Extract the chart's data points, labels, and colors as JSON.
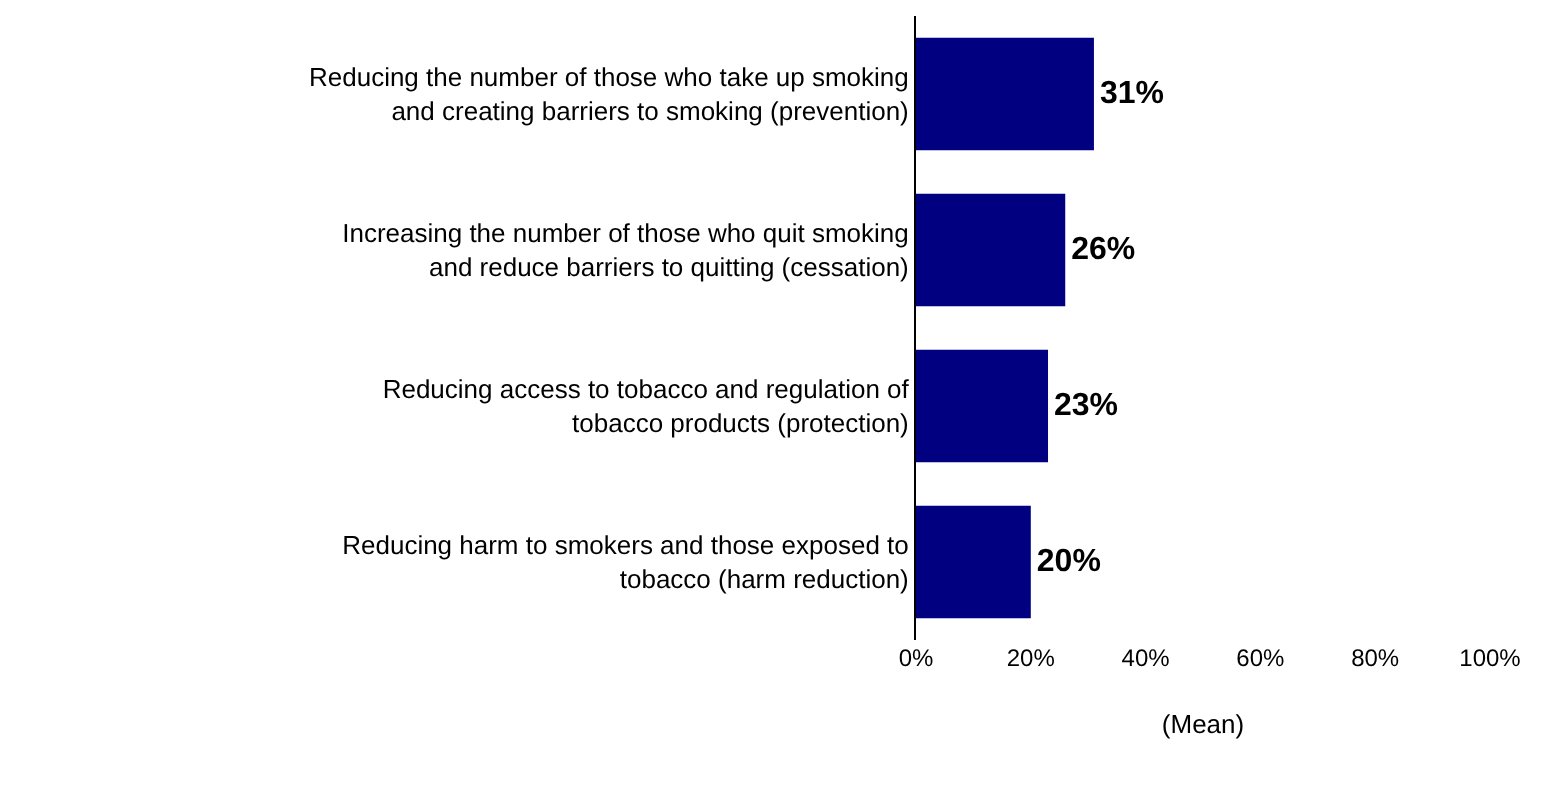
{
  "chart_data": {
    "type": "bar",
    "orientation": "horizontal",
    "xlabel": "(Mean)",
    "categories": [
      "Reducing the number of those who take up smoking and creating barriers to smoking (prevention)",
      "Increasing the number of those who quit smoking and reduce barriers to quitting (cessation)",
      "Reducing access to tobacco and regulation of tobacco products (protection)",
      "Reducing harm to smokers and those exposed to tobacco (harm reduction)"
    ],
    "values": [
      31,
      26,
      23,
      20
    ],
    "value_labels": [
      "31%",
      "26%",
      "23%",
      "20%"
    ],
    "color": "#000080",
    "xlim": [
      0,
      100
    ],
    "xticks": [
      {
        "value": 0,
        "label": "0%"
      },
      {
        "value": 20,
        "label": "20%"
      },
      {
        "value": 40,
        "label": "40%"
      },
      {
        "value": 60,
        "label": "60%"
      },
      {
        "value": 80,
        "label": "80%"
      },
      {
        "value": 100,
        "label": "100%"
      }
    ],
    "legend": false
  }
}
